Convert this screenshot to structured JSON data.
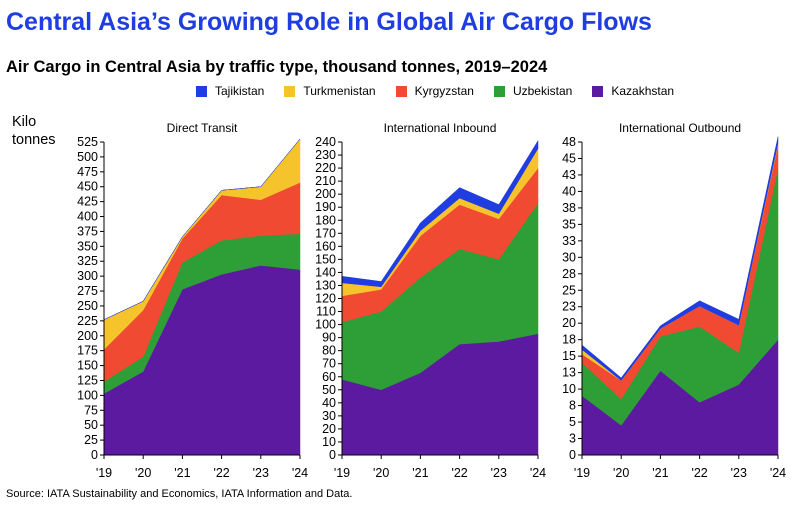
{
  "title": "Central Asia’s Growing Role in Global Air Cargo Flows",
  "subtitle": "Air Cargo in Central Asia by traffic type, thousand tonnes, 2019–2024",
  "unit_label_line1": "Kilo",
  "unit_label_line2": "tonnes",
  "source": "Source: IATA Sustainability and Economics, IATA Information and Data.",
  "legend": [
    {
      "name": "Tajikistan",
      "color": "#1f3de0"
    },
    {
      "name": "Turkmenistan",
      "color": "#f5c32c"
    },
    {
      "name": "Kyrgyzstan",
      "color": "#f04a32"
    },
    {
      "name": "Uzbekistan",
      "color": "#2e9e36"
    },
    {
      "name": "Kazakhstan",
      "color": "#5b1aa0"
    }
  ],
  "chart_data": [
    {
      "type": "area",
      "stacked": true,
      "title": "Direct Transit",
      "categories": [
        "'19",
        "'20",
        "'21",
        "'22",
        "'23",
        "'24"
      ],
      "ylim": [
        0,
        525
      ],
      "ystep": 25,
      "grid": false,
      "series": [
        {
          "name": "Kazakhstan",
          "color": "#5b1aa0",
          "values": [
            103,
            140,
            278,
            303,
            318,
            311
          ]
        },
        {
          "name": "Uzbekistan",
          "color": "#2e9e36",
          "values": [
            20,
            25,
            45,
            57,
            50,
            60
          ]
        },
        {
          "name": "Kyrgyzstan",
          "color": "#f04a32",
          "values": [
            54,
            78,
            40,
            76,
            60,
            86
          ]
        },
        {
          "name": "Turkmenistan",
          "color": "#f5c32c",
          "values": [
            50,
            15,
            3,
            8,
            22,
            73
          ]
        },
        {
          "name": "Tajikistan",
          "color": "#1f3de0",
          "values": [
            0,
            0,
            0,
            0,
            0,
            0
          ]
        }
      ]
    },
    {
      "type": "area",
      "stacked": true,
      "title": "International Inbound",
      "categories": [
        "'19",
        "'20",
        "'21",
        "'22",
        "'23",
        "'24"
      ],
      "ylim": [
        0,
        240
      ],
      "ystep": 10,
      "grid": false,
      "series": [
        {
          "name": "Kazakhstan",
          "color": "#5b1aa0",
          "values": [
            58,
            50,
            63,
            85,
            87,
            93
          ]
        },
        {
          "name": "Uzbekistan",
          "color": "#2e9e36",
          "values": [
            44,
            60,
            73,
            73,
            63,
            100
          ]
        },
        {
          "name": "Kyrgyzstan",
          "color": "#f04a32",
          "values": [
            20,
            17,
            32,
            34,
            31,
            27
          ]
        },
        {
          "name": "Turkmenistan",
          "color": "#f5c32c",
          "values": [
            10,
            2,
            4,
            5,
            4,
            15
          ]
        },
        {
          "name": "Tajikistan",
          "color": "#1f3de0",
          "values": [
            5,
            4,
            6,
            8,
            7,
            6
          ]
        }
      ]
    },
    {
      "type": "area",
      "stacked": true,
      "title": "International Outbound",
      "categories": [
        "'19",
        "'20",
        "'21",
        "'22",
        "'23",
        "'24"
      ],
      "ylim": [
        0,
        47.5
      ],
      "ystep": 2.5,
      "grid": false,
      "series": [
        {
          "name": "Kazakhstan",
          "color": "#5b1aa0",
          "values": [
            9,
            4.5,
            12.8,
            8,
            10.7,
            17.5
          ]
        },
        {
          "name": "Uzbekistan",
          "color": "#2e9e36",
          "values": [
            5,
            4,
            5.2,
            11.5,
            4.8,
            26
          ]
        },
        {
          "name": "Kyrgyzstan",
          "color": "#f04a32",
          "values": [
            1.3,
            2.8,
            1.2,
            3.1,
            4.2,
            3.5
          ]
        },
        {
          "name": "Turkmenistan",
          "color": "#f5c32c",
          "values": [
            0.7,
            0,
            0,
            0,
            0,
            0.3
          ]
        },
        {
          "name": "Tajikistan",
          "color": "#1f3de0",
          "values": [
            0.7,
            0.4,
            0.4,
            0.8,
            0.9,
            1
          ]
        }
      ]
    }
  ]
}
